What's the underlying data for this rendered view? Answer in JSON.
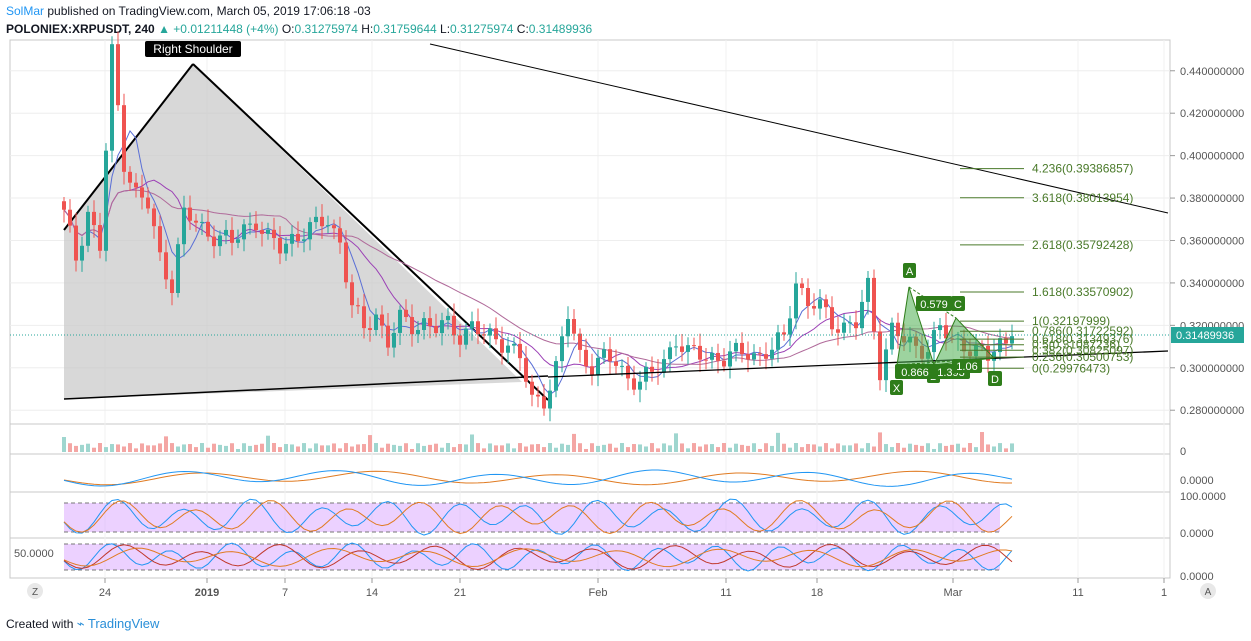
{
  "header": {
    "author": "SolMar",
    "published": "published on TradingView.com, March 05, 2019 17:06:18 -03",
    "symbol": "POLONIEX:XRPUSDT, 240",
    "change": "+0.01211448 (+4%)",
    "o_label": "O:",
    "o": "0.31275974",
    "h_label": "H:",
    "h": "0.31759644",
    "l_label": "L:",
    "l": "0.31275974",
    "c_label": "C:",
    "c": "0.31489936"
  },
  "footer": {
    "created_with": "Created with",
    "brand": "TradingView"
  },
  "colors": {
    "up": "#26a69a",
    "down": "#ef5350",
    "fib": "#4a7a2a",
    "pattern": "#2e7d1a",
    "stoch": "#cc88ff"
  },
  "chart_data": {
    "type": "candlestick",
    "y_ticks": [
      "0.440000000",
      "0.420000000",
      "0.400000000",
      "0.380000000",
      "0.360000000",
      "0.340000000",
      "0.320000000",
      "0.300000000",
      "0.280000000"
    ],
    "ylim": [
      0.2735,
      0.4545
    ],
    "x_ticks": [
      "24",
      "2019",
      "7",
      "14",
      "21",
      "Feb",
      "11",
      "18",
      "Mar",
      "11",
      "1"
    ],
    "last_price": "0.31489936",
    "close_path": [
      [
        0,
        0.372
      ],
      [
        2,
        0.352
      ],
      [
        4,
        0.374
      ],
      [
        6,
        0.356
      ],
      [
        8,
        0.448
      ],
      [
        10,
        0.398
      ],
      [
        12,
        0.382
      ],
      [
        14,
        0.376
      ],
      [
        16,
        0.352
      ],
      [
        18,
        0.34
      ],
      [
        20,
        0.372
      ],
      [
        22,
        0.368
      ],
      [
        24,
        0.364
      ],
      [
        26,
        0.362
      ],
      [
        28,
        0.358
      ],
      [
        30,
        0.366
      ],
      [
        32,
        0.37
      ],
      [
        34,
        0.36
      ],
      [
        36,
        0.356
      ],
      [
        38,
        0.362
      ],
      [
        40,
        0.364
      ],
      [
        42,
        0.366
      ],
      [
        44,
        0.37
      ],
      [
        46,
        0.36
      ],
      [
        48,
        0.328
      ],
      [
        50,
        0.318
      ],
      [
        52,
        0.326
      ],
      [
        54,
        0.312
      ],
      [
        56,
        0.322
      ],
      [
        58,
        0.32
      ],
      [
        60,
        0.322
      ],
      [
        62,
        0.318
      ],
      [
        64,
        0.32
      ],
      [
        66,
        0.316
      ],
      [
        68,
        0.32
      ],
      [
        70,
        0.314
      ],
      [
        72,
        0.314
      ],
      [
        74,
        0.312
      ],
      [
        76,
        0.304
      ],
      [
        78,
        0.284
      ],
      [
        80,
        0.286
      ],
      [
        82,
        0.3
      ],
      [
        84,
        0.324
      ],
      [
        86,
        0.306
      ],
      [
        88,
        0.302
      ],
      [
        90,
        0.304
      ],
      [
        92,
        0.302
      ],
      [
        94,
        0.296
      ],
      [
        96,
        0.294
      ],
      [
        98,
        0.296
      ],
      [
        100,
        0.304
      ],
      [
        102,
        0.314
      ],
      [
        104,
        0.306
      ],
      [
        106,
        0.306
      ],
      [
        108,
        0.306
      ],
      [
        110,
        0.304
      ],
      [
        112,
        0.306
      ],
      [
        114,
        0.308
      ],
      [
        116,
        0.306
      ],
      [
        118,
        0.308
      ],
      [
        120,
        0.314
      ],
      [
        122,
        0.342
      ],
      [
        124,
        0.33
      ],
      [
        126,
        0.328
      ],
      [
        128,
        0.322
      ],
      [
        130,
        0.32
      ],
      [
        132,
        0.32
      ],
      [
        134,
        0.338
      ],
      [
        136,
        0.3
      ],
      [
        138,
        0.318
      ],
      [
        140,
        0.312
      ],
      [
        142,
        0.31
      ],
      [
        144,
        0.31
      ],
      [
        146,
        0.318
      ],
      [
        148,
        0.312
      ],
      [
        150,
        0.312
      ],
      [
        152,
        0.308
      ],
      [
        154,
        0.304
      ],
      [
        156,
        0.312
      ],
      [
        158,
        0.3149
      ]
    ],
    "fib_levels": [
      {
        "label": "4.236(0.39386857)",
        "value": 0.39386857
      },
      {
        "label": "3.618(0.38013954)",
        "value": 0.38013954
      },
      {
        "label": "2.618(0.35792428)",
        "value": 0.35792428
      },
      {
        "label": "1.618(0.33570902)",
        "value": 0.33570902
      },
      {
        "label": "1(0.32197999)",
        "value": 0.32197999
      },
      {
        "label": "0.786(0.31722592)",
        "value": 0.31722592
      },
      {
        "label": "0.618(0.31349376)",
        "value": 0.31349376
      },
      {
        "label": "0.5(0.31087236)",
        "value": 0.31087236
      },
      {
        "label": "0.382(0.30825097)",
        "value": 0.30825097
      },
      {
        "label": "0.236(0.30500753)",
        "value": 0.30500753
      },
      {
        "label": "0(0.29976473)",
        "value": 0.29976473
      }
    ],
    "pattern": {
      "points": {
        "X": "X",
        "A": "A",
        "B": "B",
        "C": "C",
        "D": "D"
      },
      "ratios": {
        "xb": "0.866",
        "ac": "0.579",
        "bd": "1.393",
        "xd": "1.06"
      }
    },
    "annotation": "Right Shoulder",
    "sub_panels": [
      {
        "name": "volume"
      },
      {
        "name": "macd",
        "tick": "0.0000"
      },
      {
        "name": "stochastic",
        "ticks": [
          "100.0000",
          "0.0000"
        ]
      },
      {
        "name": "rsi",
        "ticks": [
          "50.0000",
          "0.0000"
        ]
      }
    ],
    "nav": {
      "left": "Z",
      "right": "A"
    }
  }
}
